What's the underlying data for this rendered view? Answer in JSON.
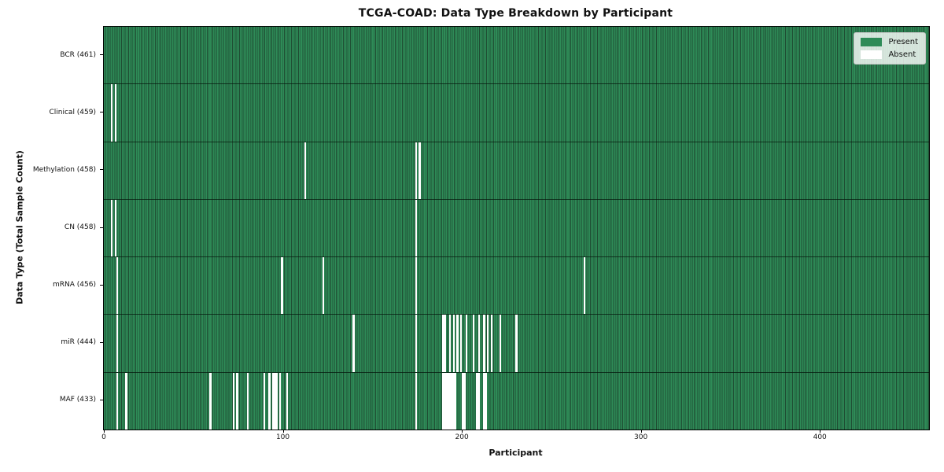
{
  "chart_data": {
    "type": "heatmap",
    "title": "TCGA-COAD: Data Type Breakdown by Participant",
    "x_label": "Participant",
    "y_label": "Data Type (Total Sample Count)",
    "n_participants": 461,
    "x_ticks": [
      0,
      100,
      200,
      300,
      400
    ],
    "x_range": [
      0,
      461
    ],
    "grid": false,
    "legend_position": "upper right",
    "legend_items": [
      {
        "label": "Present",
        "color": "#2e8b57"
      },
      {
        "label": "Absent",
        "color": "#ffffff"
      }
    ],
    "rows": [
      {
        "data_type": "BCR",
        "label": "BCR (461)",
        "present_count": 461,
        "absent_participants": []
      },
      {
        "data_type": "Clinical",
        "label": "Clinical (459)",
        "present_count": 459,
        "absent_participants": [
          4,
          6
        ]
      },
      {
        "data_type": "Methylation",
        "label": "Methylation (458)",
        "present_count": 458,
        "absent_participants": [
          112,
          174,
          176
        ]
      },
      {
        "data_type": "CN",
        "label": "CN (458)",
        "present_count": 458,
        "absent_participants": [
          4,
          6,
          174
        ]
      },
      {
        "data_type": "mRNA",
        "label": "mRNA (456)",
        "present_count": 456,
        "absent_participants": [
          7,
          99,
          122,
          174,
          268
        ]
      },
      {
        "data_type": "miR",
        "label": "miR (444)",
        "present_count": 444,
        "absent_participants": [
          7,
          139,
          174,
          189,
          190,
          193,
          195,
          197,
          199,
          202,
          206,
          209,
          212,
          214,
          216,
          221,
          230
        ]
      },
      {
        "data_type": "MAF",
        "label": "MAF (433)",
        "present_count": 433,
        "absent_participants": [
          7,
          12,
          59,
          72,
          74,
          80,
          89,
          92,
          94,
          95,
          96,
          98,
          102,
          174,
          189,
          190,
          191,
          192,
          193,
          194,
          195,
          196,
          200,
          201,
          208,
          209,
          212,
          213
        ]
      }
    ]
  },
  "colors": {
    "present": "#2e8b57",
    "present_edge": "#1f4d33",
    "absent": "#ffffff",
    "row_divider": "#05190e",
    "axis": "#000000",
    "legend_border": "#c8c8c8"
  }
}
